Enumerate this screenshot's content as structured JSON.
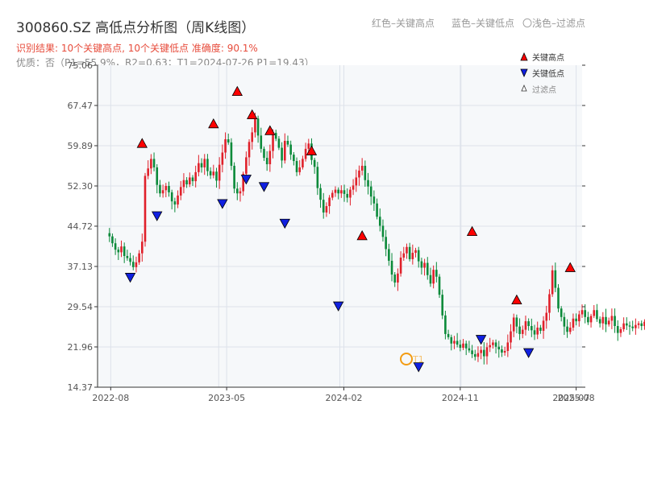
{
  "header": {
    "title": "300860.SZ 高低点分析图（周K线图）",
    "hint_red": "红色–关键高点",
    "hint_blue": "蓝色–关键低点",
    "hint_light": "〇浅色–过滤点",
    "result_line": "识别结果: 10个关键高点, 10个关键低点   准确度: 90.1%",
    "quality_line": "优质：否（P1=55.9%，R2=0.63；T1=2024-07-26 P1=19.43）"
  },
  "legend": {
    "high": "关键高点",
    "low": "关键低点",
    "filtered": "过滤点"
  },
  "annotation": {
    "label": "T1"
  },
  "colors": {
    "up": "#e0202a",
    "down": "#0b8a3a",
    "high_marker": "#ff0000",
    "low_marker": "#1020e0",
    "t1_ring": "#f39c12",
    "plot_bg": "#f6f8fa",
    "grid": "#dde2ea"
  },
  "chart_data": {
    "type": "candlestick",
    "x_tick_labels": [
      "2022-08",
      "2023-05",
      "2024-02",
      "2024-11",
      "2025-08"
    ],
    "x_end_label_overlap": "2025-07",
    "y_tick_labels": [
      "14.37",
      "21.96",
      "29.54",
      "37.13",
      "44.72",
      "52.30",
      "59.89",
      "67.47",
      "75.06"
    ],
    "ylim": [
      14.37,
      75.06
    ],
    "key_highs": [
      {
        "date": "2022-10-14",
        "price": 59.1
      },
      {
        "date": "2023-03-31",
        "price": 62.8
      },
      {
        "date": "2023-05-26",
        "price": 68.9
      },
      {
        "date": "2023-06-30",
        "price": 64.5
      },
      {
        "date": "2023-08-11",
        "price": 61.5
      },
      {
        "date": "2023-11-17",
        "price": 57.7
      },
      {
        "date": "2024-03-15",
        "price": 41.7
      },
      {
        "date": "2024-11-29",
        "price": 42.5
      },
      {
        "date": "2025-03-14",
        "price": 29.6
      },
      {
        "date": "2025-07-18",
        "price": 35.7
      }
    ],
    "key_lows": [
      {
        "date": "2022-09-16",
        "price": 36.3
      },
      {
        "date": "2022-11-18",
        "price": 47.9
      },
      {
        "date": "2023-04-21",
        "price": 50.2
      },
      {
        "date": "2023-06-16",
        "price": 54.8
      },
      {
        "date": "2023-07-28",
        "price": 53.4
      },
      {
        "date": "2023-09-15",
        "price": 46.5
      },
      {
        "date": "2024-01-19",
        "price": 30.9
      },
      {
        "date": "2024-07-26",
        "price": 19.43
      },
      {
        "date": "2024-12-20",
        "price": 24.6
      },
      {
        "date": "2025-04-11",
        "price": 22.1
      }
    ],
    "weekly_closes": [
      42.8,
      41.5,
      40.3,
      39.8,
      40.9,
      39.1,
      38.7,
      38.0,
      37.0,
      37.9,
      39.6,
      41.8,
      54.2,
      55.6,
      57.4,
      55.8,
      52.5,
      50.9,
      51.5,
      52.3,
      51.1,
      49.4,
      48.8,
      50.5,
      52.1,
      53.4,
      52.6,
      53.9,
      53.2,
      54.9,
      56.6,
      55.8,
      57.4,
      55.1,
      54.3,
      55.0,
      53.3,
      56.3,
      58.6,
      61.1,
      60.5,
      56.1,
      51.8,
      50.9,
      51.3,
      54.6,
      57.7,
      60.6,
      62.4,
      65.0,
      61.8,
      59.3,
      57.6,
      56.4,
      58.9,
      62.3,
      61.2,
      59.5,
      57.1,
      60.8,
      60.1,
      58.2,
      57.0,
      54.9,
      55.8,
      57.4,
      59.3,
      60.3,
      57.2,
      55.9,
      51.9,
      49.7,
      47.3,
      48.5,
      50.1,
      51.0,
      51.6,
      50.9,
      51.5,
      50.8,
      50.1,
      51.6,
      52.4,
      53.9,
      55.2,
      56.1,
      53.4,
      52.2,
      50.3,
      49.0,
      46.5,
      44.8,
      42.7,
      40.4,
      38.2,
      35.6,
      34.1,
      35.8,
      38.8,
      39.6,
      40.8,
      38.5,
      39.7,
      40.2,
      38.1,
      36.9,
      37.8,
      35.5,
      33.9,
      36.5,
      35.2,
      31.8,
      27.9,
      24.4,
      23.8,
      22.6,
      23.1,
      22.4,
      21.8,
      22.6,
      21.7,
      21.3,
      20.6,
      20.1,
      20.8,
      21.4,
      20.2,
      21.9,
      22.3,
      22.8,
      22.0,
      21.5,
      20.9,
      21.2,
      22.8,
      24.9,
      27.5,
      25.8,
      24.4,
      25.2,
      26.8,
      25.9,
      25.1,
      24.3,
      25.6,
      25.0,
      26.9,
      28.4,
      31.9,
      36.4,
      33.1,
      29.2,
      27.6,
      25.8,
      24.8,
      25.6,
      27.3,
      26.8,
      28.1,
      28.9,
      27.6,
      26.6,
      27.8,
      28.9,
      27.2,
      26.4,
      27.6,
      26.2,
      26.9,
      27.8,
      25.9,
      24.6,
      25.3,
      26.4,
      26.0,
      25.8,
      25.5,
      26.1,
      26.4,
      25.9,
      26.7,
      27.2,
      26.5,
      25.9,
      26.3,
      27.4,
      28.0,
      27.1,
      31.7,
      30.9,
      29.8,
      29.4,
      29.9,
      29.5
    ]
  }
}
